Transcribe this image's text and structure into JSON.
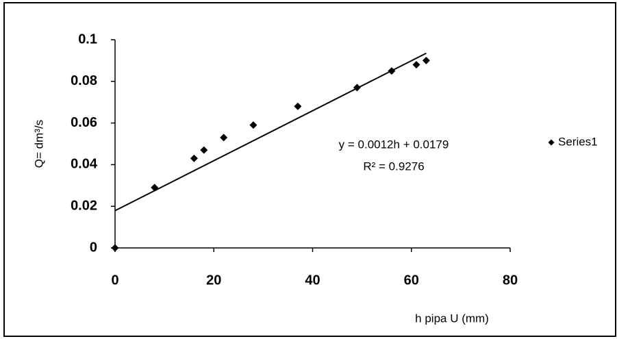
{
  "chart_data": {
    "type": "scatter",
    "x": [
      0,
      8,
      16,
      18,
      22,
      28,
      37,
      49,
      56,
      61,
      63
    ],
    "series": [
      {
        "name": "Series1",
        "color": "#000000",
        "values": [
          0,
          0.029,
          0.043,
          0.047,
          0.053,
          0.059,
          0.068,
          0.077,
          0.085,
          0.088,
          0.09
        ]
      }
    ],
    "xlabel": "h pipa U (mm)",
    "ylabel": "Q= dm³/s",
    "xlim": [
      0,
      80
    ],
    "xticks": [
      0,
      20,
      40,
      60,
      80
    ],
    "ylim": [
      0,
      0.1
    ],
    "yticks": [
      0,
      0.02,
      0.04,
      0.06,
      0.08,
      0.1
    ],
    "grid": false,
    "legend": "right",
    "trendline": {
      "slope": 0.0012,
      "intercept": 0.0179,
      "label": "y = 0.0012h + 0.0179",
      "r2_label": "R² = 0.9276"
    }
  }
}
